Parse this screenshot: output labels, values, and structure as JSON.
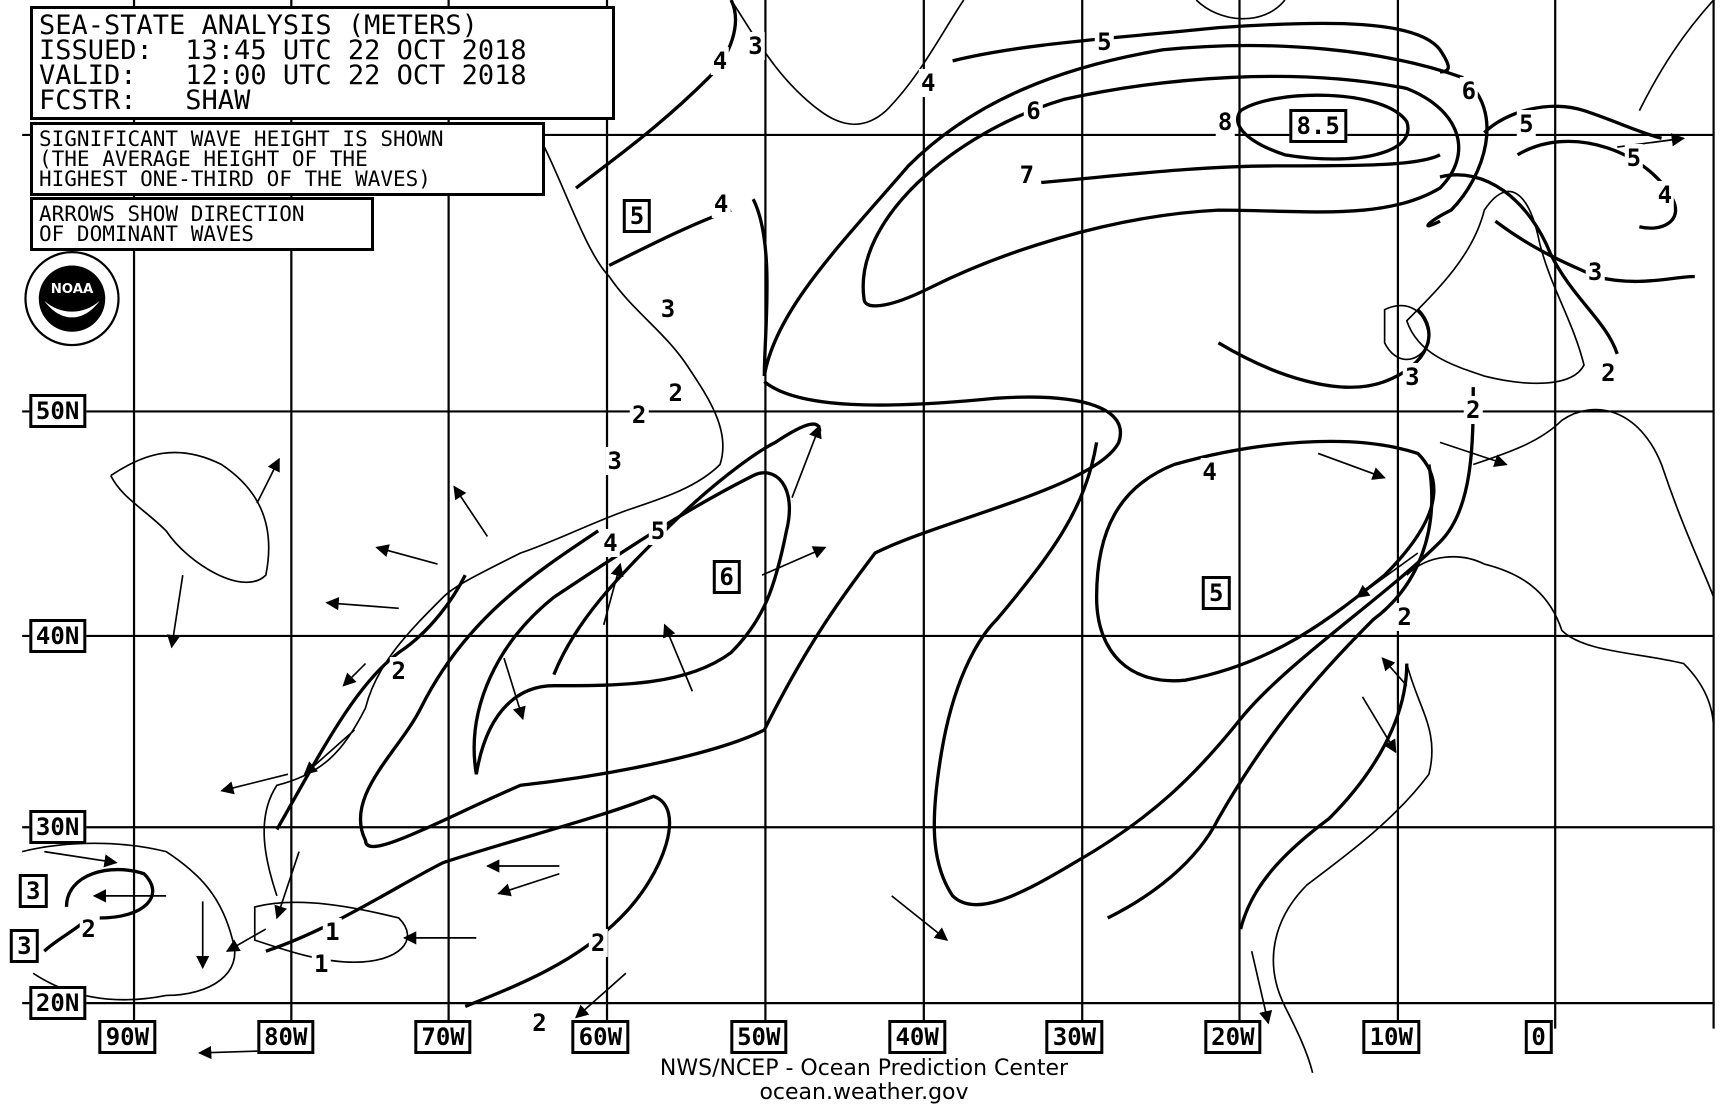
{
  "header": {
    "title": "SEA-STATE ANALYSIS (METERS)",
    "issued": "ISSUED:  13:45 UTC 22 OCT 2018",
    "valid": "VALID:   12:00 UTC 22 OCT 2018",
    "forecaster": "FCSTR:   SHAW"
  },
  "notes": {
    "wave_height": "SIGNIFICANT WAVE HEIGHT IS SHOWN\n(THE AVERAGE HEIGHT OF THE\nHIGHEST ONE-THIRD OF THE WAVES)",
    "arrows": "ARROWS SHOW DIRECTION\nOF DOMINANT WAVES"
  },
  "logo": {
    "text": "NOAA",
    "icon": "noaa-logo"
  },
  "latitude_labels": [
    "50N",
    "40N",
    "30N",
    "20N"
  ],
  "longitude_labels": [
    "90W",
    "80W",
    "70W",
    "60W",
    "50W",
    "40W",
    "30W",
    "20W",
    "10W",
    "0"
  ],
  "contour_labels": [
    "3",
    "4",
    "4",
    "5",
    "6",
    "6",
    "7",
    "8",
    "5",
    "5",
    "4",
    "3",
    "2",
    "3",
    "2",
    "4",
    "4",
    "3",
    "2",
    "2",
    "3",
    "4",
    "5",
    "2",
    "2",
    "2",
    "1",
    "1",
    "2",
    "2"
  ],
  "max_labels": [
    "8.5",
    "5",
    "5",
    "6",
    "3",
    "3"
  ],
  "footer": {
    "line1": "NWS/NCEP - Ocean Prediction Center",
    "line2": "ocean.weather.gov"
  }
}
